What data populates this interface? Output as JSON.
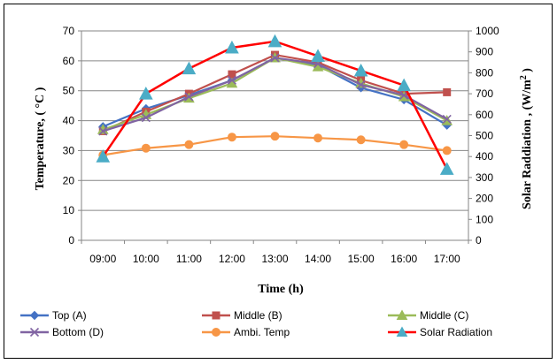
{
  "chart_data": {
    "type": "line",
    "categories": [
      "09:00",
      "10:00",
      "11:00",
      "12:00",
      "13:00",
      "14:00",
      "15:00",
      "16:00",
      "17:00"
    ],
    "xlabel": "Time (h)",
    "ylabel": "Temperature, ( °C )",
    "y2label": "Solar Raddiation , (W/m² )",
    "ylim": [
      0,
      70
    ],
    "y2lim": [
      0,
      1000
    ],
    "yticks": [
      0,
      10,
      20,
      30,
      40,
      50,
      60,
      70
    ],
    "y2ticks": [
      0,
      100,
      200,
      300,
      400,
      500,
      600,
      700,
      800,
      900,
      1000
    ],
    "grid": true,
    "legend_position": "bottom",
    "series": [
      {
        "name": "Top (A)",
        "axis": "left",
        "color": "#4472C4",
        "marker": "diamond",
        "values": [
          38,
          44,
          48.5,
          53.5,
          61,
          58.5,
          51,
          47,
          38.5
        ]
      },
      {
        "name": "Middle (B)",
        "axis": "left",
        "color": "#C0504D",
        "marker": "square",
        "values": [
          36.5,
          43,
          49,
          55.5,
          62,
          59.5,
          53.5,
          49,
          49.5
        ]
      },
      {
        "name": "Middle (C)",
        "axis": "left",
        "color": "#9BBB59",
        "marker": "triangle",
        "values": [
          37,
          42,
          47.5,
          52.5,
          61,
          58,
          52.5,
          48,
          40
        ]
      },
      {
        "name": "Bottom (D)",
        "axis": "left",
        "color": "#8064A2",
        "marker": "x",
        "values": [
          36.5,
          41,
          48,
          53.5,
          61,
          59,
          52,
          48.5,
          40.5
        ]
      },
      {
        "name": "Ambi. Temp",
        "axis": "left",
        "color": "#F79646",
        "marker": "circle",
        "values": [
          28.5,
          30.8,
          32,
          34.5,
          34.8,
          34.2,
          33.6,
          32,
          30
        ]
      },
      {
        "name": "Solar Radiation",
        "axis": "right",
        "color": "#FF0000",
        "marker": "triangle",
        "marker_color": "#4BACC6",
        "values": [
          400,
          700,
          820,
          920,
          950,
          880,
          810,
          740,
          340
        ]
      }
    ]
  }
}
